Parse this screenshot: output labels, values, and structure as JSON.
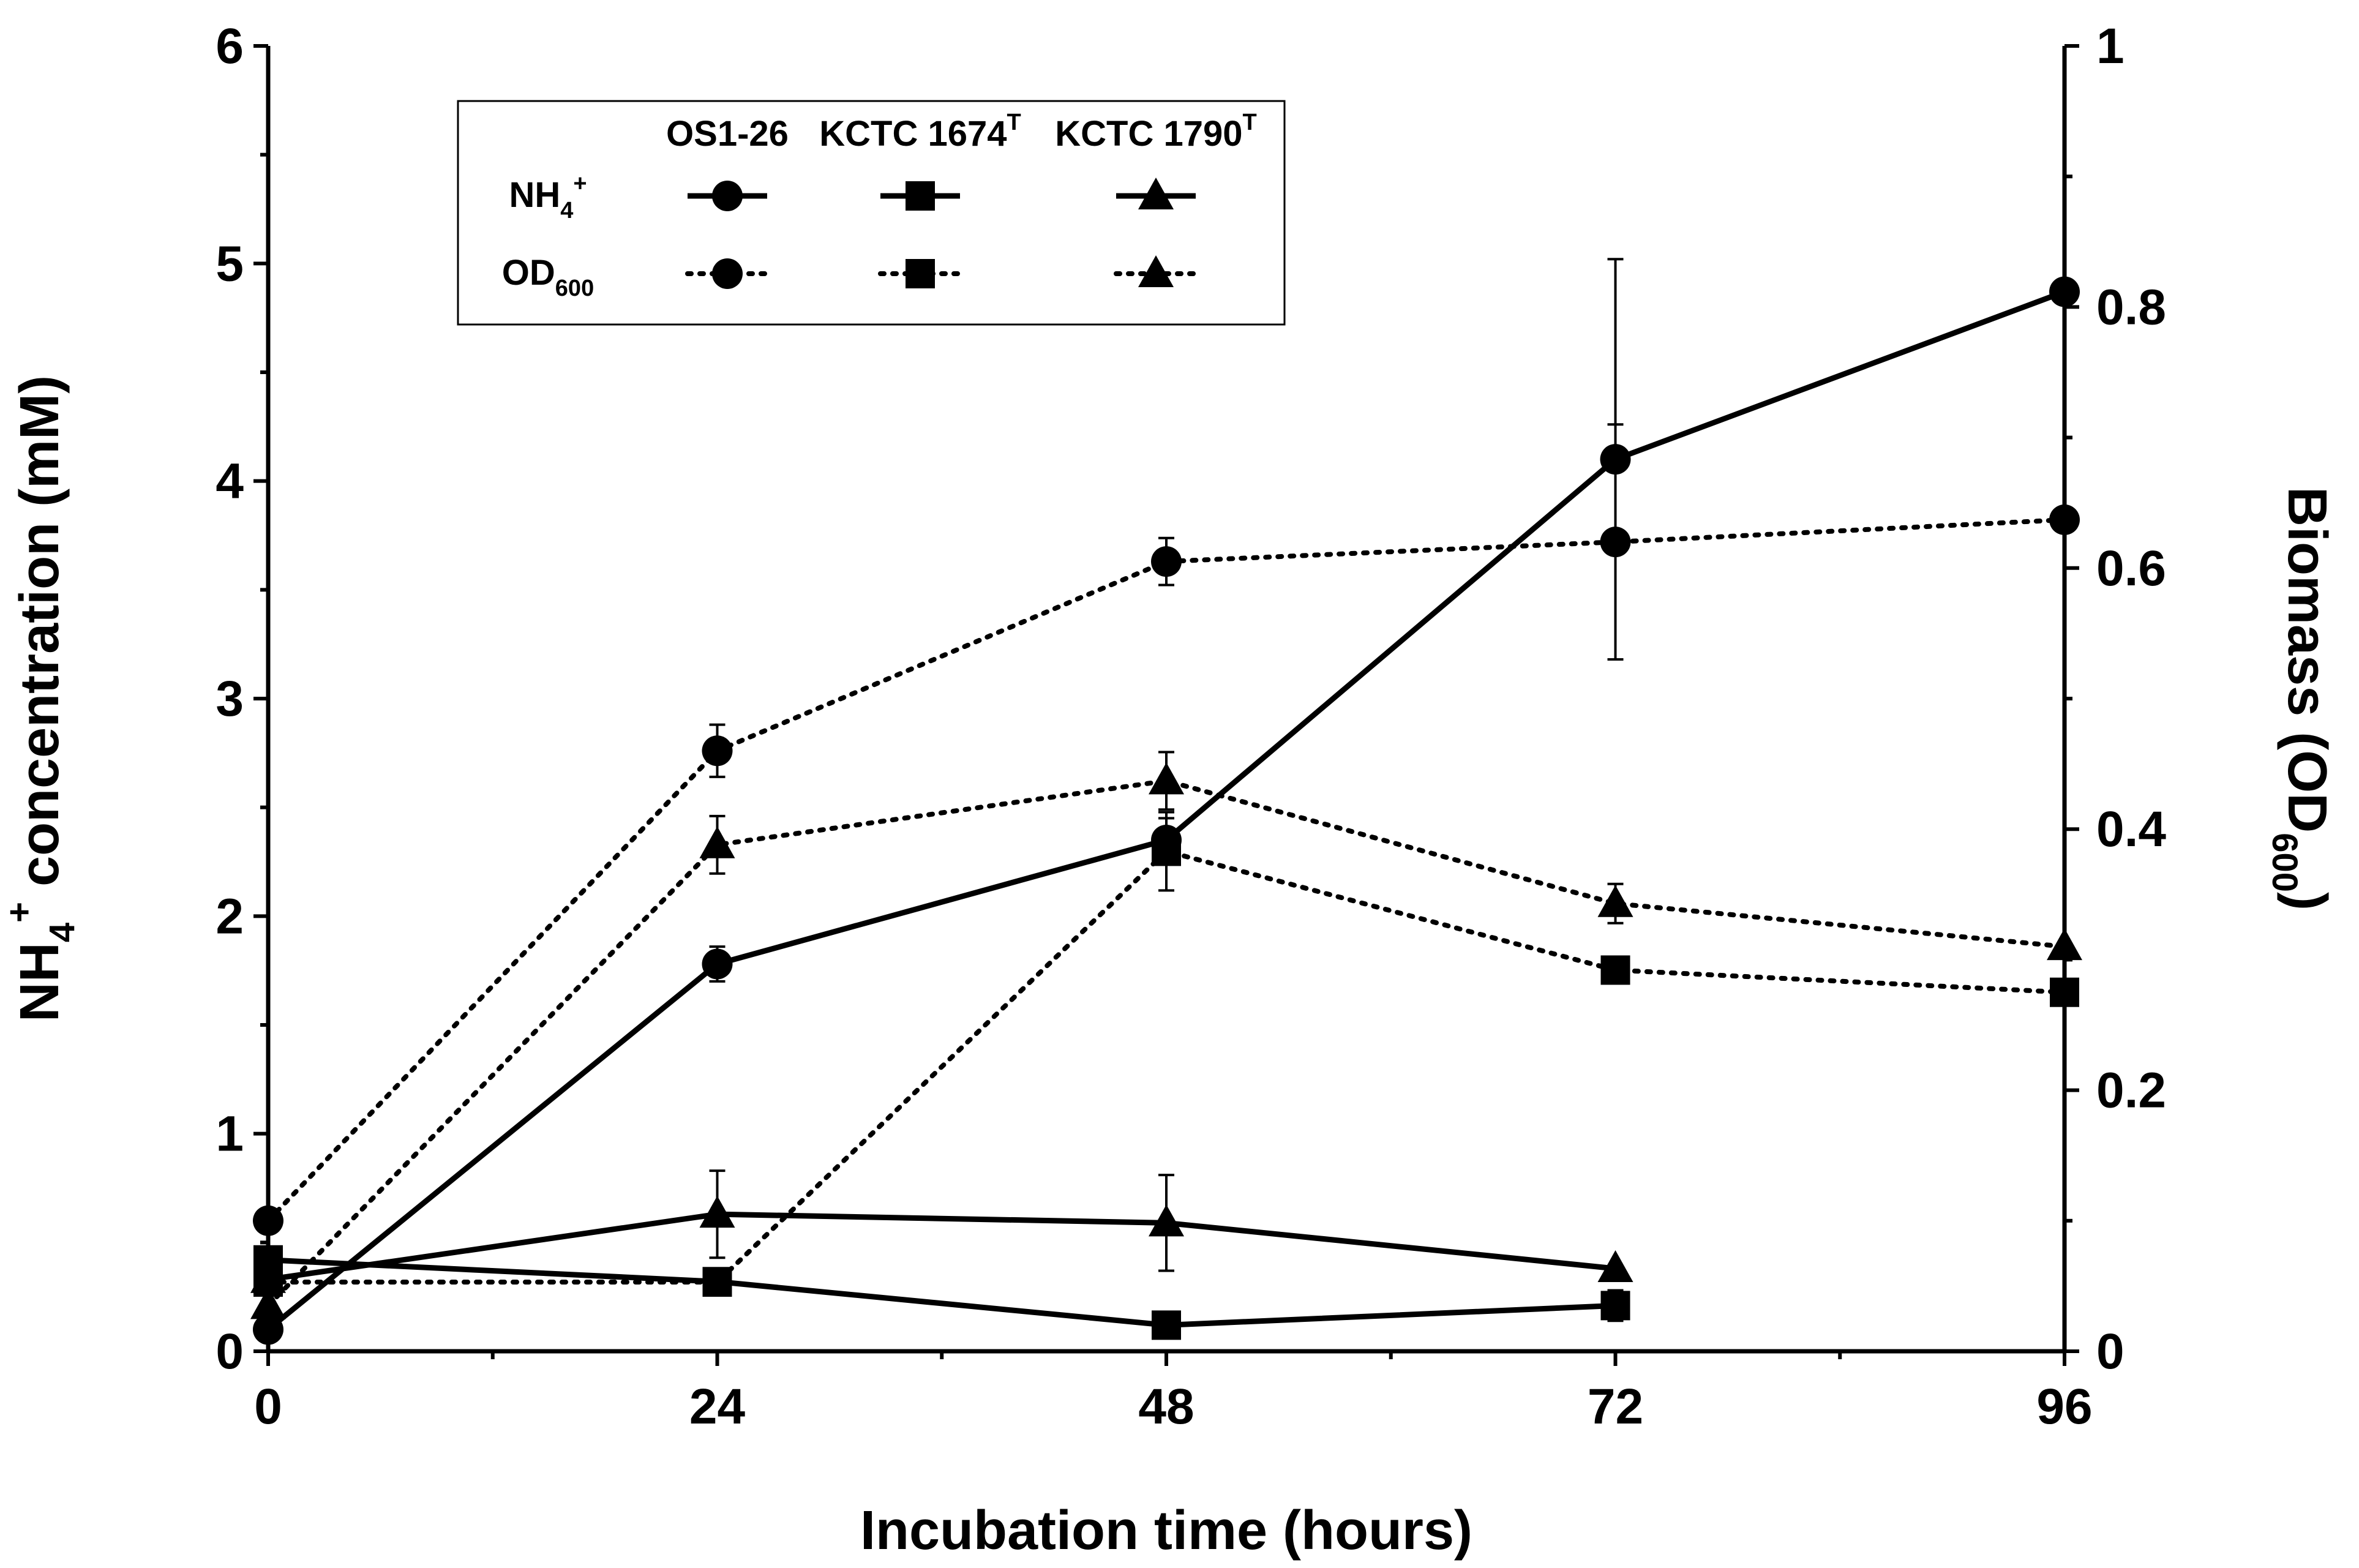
{
  "chart_data": {
    "type": "line",
    "title": "",
    "xlabel": "Incubation time (hours)",
    "ylabel_left": {
      "main": "NH",
      "sub": "4",
      "sup": "+",
      "rest": " concentration (mM)"
    },
    "ylabel_right": {
      "main": "Biomass (OD",
      "sub": "600",
      "rest": ")"
    },
    "x_ticks": [
      0,
      24,
      48,
      72,
      96
    ],
    "xlim": [
      0,
      96
    ],
    "ylim_left": [
      0,
      6
    ],
    "ylim_right": [
      0,
      1
    ],
    "y_ticks_left": [
      "0",
      "1",
      "2",
      "3",
      "4",
      "5",
      "6"
    ],
    "y_ticks_right": [
      "0",
      "0.2",
      "0.4",
      "0.6",
      "0.8",
      "1"
    ],
    "legend": {
      "columns": [
        {
          "name": "OS1-26",
          "sup": ""
        },
        {
          "name": "KCTC 1674",
          "sup": "T"
        },
        {
          "name": "KCTC 1790",
          "sup": "T"
        }
      ],
      "rows": [
        {
          "main": "NH",
          "sub": "4",
          "sup": "+",
          "style": "solid"
        },
        {
          "main": "OD",
          "sub": "600",
          "sup": "",
          "style": "dotted"
        }
      ]
    },
    "series": [
      {
        "name": "OS1-26 NH4+",
        "strain": "OS1-26",
        "measure": "NH4+",
        "axis": "left",
        "marker": "circle",
        "style": "solid",
        "x": [
          0,
          24,
          48,
          72,
          96
        ],
        "values": [
          0.1,
          1.78,
          2.35,
          4.1,
          4.87
        ],
        "errors": [
          0,
          0.08,
          0.1,
          0.92,
          0
        ]
      },
      {
        "name": "KCTC 1674T NH4+",
        "strain": "KCTC 1674T",
        "measure": "NH4+",
        "axis": "left",
        "marker": "square",
        "style": "solid",
        "x": [
          0,
          24,
          48,
          72
        ],
        "values": [
          0.42,
          0.32,
          0.12,
          0.21
        ],
        "errors": [
          0,
          0,
          0,
          0.07
        ]
      },
      {
        "name": "KCTC 1790T NH4+",
        "strain": "KCTC 1790T",
        "measure": "NH4+",
        "axis": "left",
        "marker": "triangle",
        "style": "solid",
        "x": [
          0,
          24,
          48,
          72
        ],
        "values": [
          0.33,
          0.63,
          0.59,
          0.38
        ],
        "errors": [
          0,
          0.2,
          0.22,
          0
        ]
      },
      {
        "name": "OS1-26 OD600",
        "strain": "OS1-26",
        "measure": "OD600",
        "axis": "right",
        "marker": "circle",
        "style": "dotted",
        "x": [
          0,
          24,
          48,
          72,
          96
        ],
        "values": [
          0.1,
          0.46,
          0.605,
          0.62,
          0.637
        ],
        "errors": [
          0,
          0.02,
          0.018,
          0.09,
          0
        ]
      },
      {
        "name": "KCTC 1674T OD600",
        "strain": "KCTC 1674T",
        "measure": "OD600",
        "axis": "right",
        "marker": "square",
        "style": "dotted",
        "x": [
          0,
          24,
          48,
          72,
          96
        ],
        "values": [
          0.053,
          0.053,
          0.383,
          0.292,
          0.275
        ],
        "errors": [
          0,
          0,
          0.03,
          0,
          0
        ]
      },
      {
        "name": "KCTC 1790T OD600",
        "strain": "KCTC 1790T",
        "measure": "OD600",
        "axis": "right",
        "marker": "triangle",
        "style": "dotted",
        "x": [
          0,
          24,
          48,
          72,
          96
        ],
        "values": [
          0.035,
          0.388,
          0.437,
          0.343,
          0.31
        ],
        "errors": [
          0,
          0.022,
          0.022,
          0.015,
          0
        ]
      }
    ]
  }
}
